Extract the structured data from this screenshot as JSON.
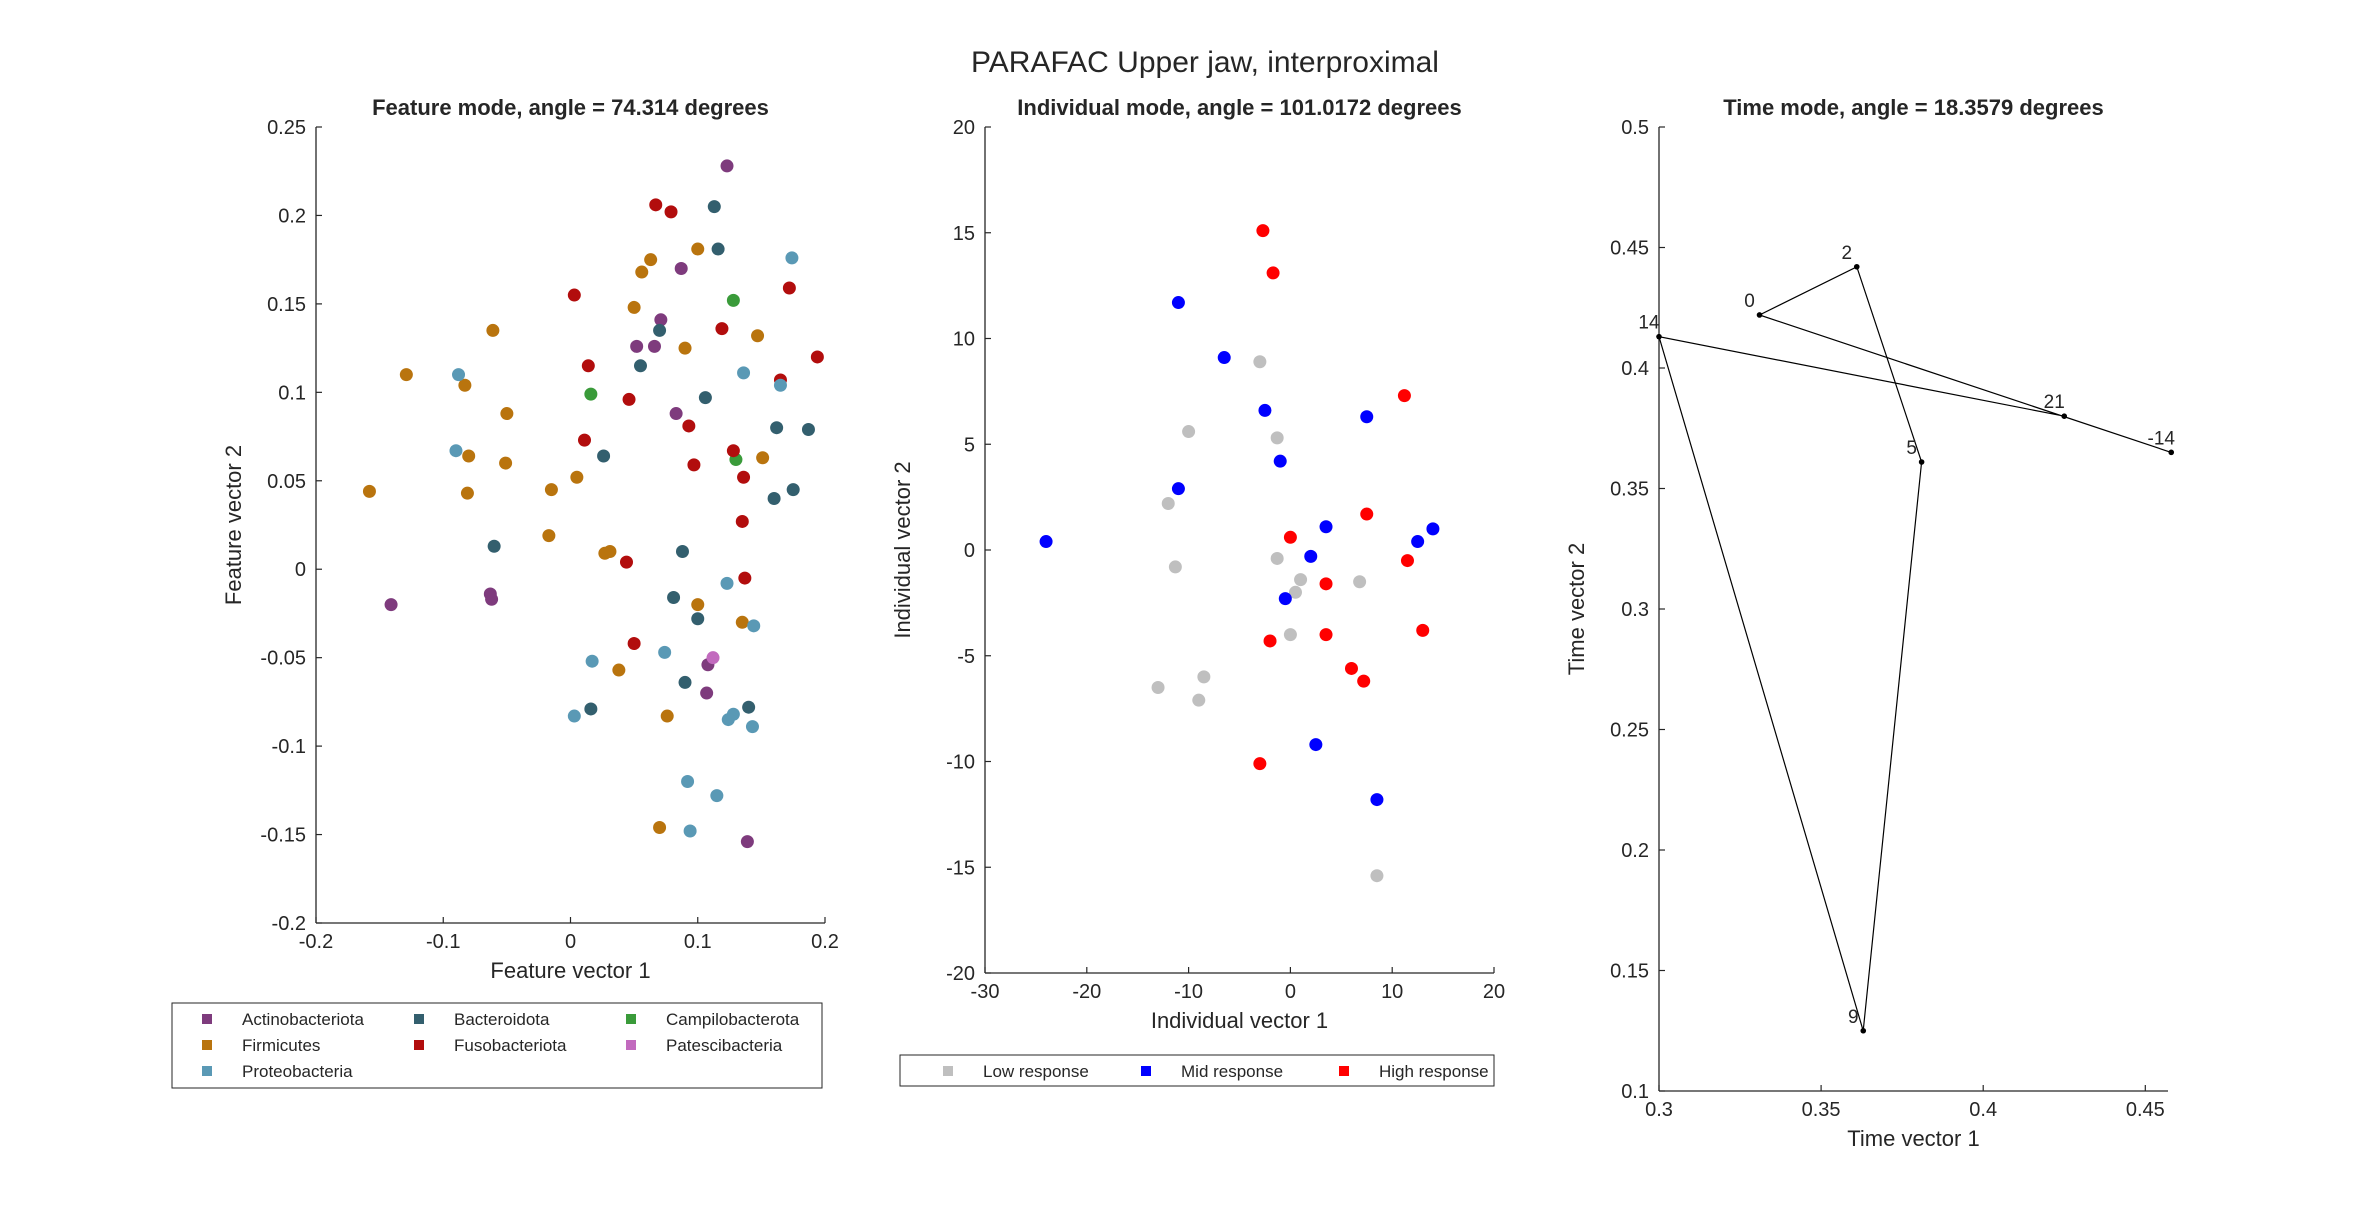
{
  "figure": {
    "suptitle": "PARAFAC Upper jaw, interproximal"
  },
  "chart_data": [
    {
      "type": "scatter",
      "title": "Feature mode, angle = 74.314 degrees",
      "xlabel": "Feature vector 1",
      "ylabel": "Feature vector 2",
      "xlim": [
        -0.2,
        0.2
      ],
      "ylim": [
        -0.2,
        0.25
      ],
      "xticks": [
        "-0.2",
        "-0.1",
        "0",
        "0.1",
        "0.2"
      ],
      "yticks": [
        "-0.2",
        "-0.15",
        "-0.1",
        "-0.05",
        "0",
        "0.05",
        "0.1",
        "0.15",
        "0.2",
        "0.25"
      ],
      "grid": false,
      "legend_position": "below",
      "series": [
        {
          "name": "Actinobacteriota",
          "color": "#7E3B7D",
          "points": [
            [
              0.123,
              0.228
            ],
            [
              0.052,
              0.126
            ],
            [
              0.066,
              0.126
            ],
            [
              0.071,
              0.141
            ],
            [
              0.083,
              0.088
            ],
            [
              0.087,
              0.17
            ],
            [
              -0.141,
              -0.02
            ],
            [
              -0.063,
              -0.014
            ],
            [
              -0.062,
              -0.017
            ],
            [
              0.107,
              -0.07
            ],
            [
              0.139,
              -0.154
            ],
            [
              0.108,
              -0.054
            ]
          ]
        },
        {
          "name": "Bacteroidota",
          "color": "#335F6E",
          "points": [
            [
              0.113,
              0.205
            ],
            [
              0.116,
              0.181
            ],
            [
              0.07,
              0.135
            ],
            [
              0.055,
              0.115
            ],
            [
              0.106,
              0.097
            ],
            [
              0.162,
              0.08
            ],
            [
              0.187,
              0.079
            ],
            [
              0.026,
              0.064
            ],
            [
              0.16,
              0.04
            ],
            [
              0.175,
              0.045
            ],
            [
              -0.06,
              0.013
            ],
            [
              0.088,
              0.01
            ],
            [
              0.081,
              -0.016
            ],
            [
              0.1,
              -0.028
            ],
            [
              0.09,
              -0.064
            ],
            [
              0.14,
              -0.078
            ],
            [
              0.016,
              -0.079
            ]
          ]
        },
        {
          "name": "Campilobacterota",
          "color": "#3A9B3A",
          "points": [
            [
              0.128,
              0.152
            ],
            [
              0.016,
              0.099
            ],
            [
              0.13,
              0.062
            ]
          ]
        },
        {
          "name": "Firmicutes",
          "color": "#B9740E",
          "points": [
            [
              0.063,
              0.175
            ],
            [
              0.1,
              0.181
            ],
            [
              0.056,
              0.168
            ],
            [
              0.05,
              0.148
            ],
            [
              0.09,
              0.125
            ],
            [
              0.147,
              0.132
            ],
            [
              -0.061,
              0.135
            ],
            [
              -0.129,
              0.11
            ],
            [
              -0.083,
              0.104
            ],
            [
              -0.05,
              0.088
            ],
            [
              -0.08,
              0.064
            ],
            [
              -0.051,
              0.06
            ],
            [
              -0.158,
              0.044
            ],
            [
              -0.081,
              0.043
            ],
            [
              -0.015,
              0.045
            ],
            [
              0.005,
              0.052
            ],
            [
              0.151,
              0.063
            ],
            [
              -0.017,
              0.019
            ],
            [
              0.027,
              0.009
            ],
            [
              0.031,
              0.01
            ],
            [
              0.1,
              -0.02
            ],
            [
              0.135,
              -0.03
            ],
            [
              0.038,
              -0.057
            ],
            [
              0.076,
              -0.083
            ],
            [
              0.07,
              -0.146
            ]
          ]
        },
        {
          "name": "Fusobacteriota",
          "color": "#B20D0D",
          "points": [
            [
              0.067,
              0.206
            ],
            [
              0.079,
              0.202
            ],
            [
              0.003,
              0.155
            ],
            [
              0.172,
              0.159
            ],
            [
              0.119,
              0.136
            ],
            [
              0.014,
              0.115
            ],
            [
              0.194,
              0.12
            ],
            [
              0.165,
              0.107
            ],
            [
              0.046,
              0.096
            ],
            [
              0.093,
              0.081
            ],
            [
              0.011,
              0.073
            ],
            [
              0.128,
              0.067
            ],
            [
              0.097,
              0.059
            ],
            [
              0.136,
              0.052
            ],
            [
              0.135,
              0.027
            ],
            [
              0.044,
              0.004
            ],
            [
              0.137,
              -0.005
            ],
            [
              0.05,
              -0.042
            ]
          ]
        },
        {
          "name": "Patescibacteria",
          "color": "#C26ABE",
          "points": [
            [
              0.112,
              -0.05
            ]
          ]
        },
        {
          "name": "Proteobacteria",
          "color": "#5A99B5",
          "points": [
            [
              0.174,
              0.176
            ],
            [
              0.136,
              0.111
            ],
            [
              0.165,
              0.104
            ],
            [
              -0.088,
              0.11
            ],
            [
              -0.09,
              0.067
            ],
            [
              0.123,
              -0.008
            ],
            [
              0.144,
              -0.032
            ],
            [
              0.074,
              -0.047
            ],
            [
              0.017,
              -0.052
            ],
            [
              0.003,
              -0.083
            ],
            [
              0.128,
              -0.082
            ],
            [
              0.124,
              -0.085
            ],
            [
              0.143,
              -0.089
            ],
            [
              0.092,
              -0.12
            ],
            [
              0.115,
              -0.128
            ],
            [
              0.094,
              -0.148
            ]
          ]
        }
      ]
    },
    {
      "type": "scatter",
      "title": "Individual mode, angle = 101.0172 degrees",
      "xlabel": "Individual vector 1",
      "ylabel": "Individual vector 2",
      "xlim": [
        -30,
        20
      ],
      "ylim": [
        -20,
        20
      ],
      "xticks": [
        "-30",
        "-20",
        "-10",
        "0",
        "10",
        "20"
      ],
      "yticks": [
        "-20",
        "-15",
        "-10",
        "-5",
        "0",
        "5",
        "10",
        "15",
        "20"
      ],
      "grid": false,
      "legend_position": "below",
      "series": [
        {
          "name": "Low response",
          "color": "#BFBFBF",
          "points": [
            [
              -3,
              8.9
            ],
            [
              -10,
              5.6
            ],
            [
              -1.3,
              5.3
            ],
            [
              -12,
              2.2
            ],
            [
              -11.3,
              -0.8
            ],
            [
              -1.3,
              -0.4
            ],
            [
              1,
              -1.4
            ],
            [
              6.8,
              -1.5
            ],
            [
              0.5,
              -2
            ],
            [
              0,
              -4
            ],
            [
              -8.5,
              -6
            ],
            [
              -13,
              -6.5
            ],
            [
              -9,
              -7.1
            ],
            [
              8.5,
              -15.4
            ]
          ]
        },
        {
          "name": "Mid response",
          "color": "#0000FF",
          "points": [
            [
              -11,
              11.7
            ],
            [
              -6.5,
              9.1
            ],
            [
              -2.5,
              6.6
            ],
            [
              7.5,
              6.3
            ],
            [
              -1,
              4.2
            ],
            [
              -11,
              2.9
            ],
            [
              3.5,
              1.1
            ],
            [
              14,
              1
            ],
            [
              12.5,
              0.4
            ],
            [
              -24,
              0.4
            ],
            [
              2,
              -0.3
            ],
            [
              -0.5,
              -2.3
            ],
            [
              2.5,
              -9.2
            ],
            [
              8.5,
              -11.8
            ]
          ]
        },
        {
          "name": "High response",
          "color": "#FF0000",
          "points": [
            [
              -2.7,
              15.1
            ],
            [
              -1.7,
              13.1
            ],
            [
              11.2,
              7.3
            ],
            [
              7.5,
              1.7
            ],
            [
              0,
              0.6
            ],
            [
              11.5,
              -0.5
            ],
            [
              3.5,
              -1.6
            ],
            [
              3.5,
              -4
            ],
            [
              -2,
              -4.3
            ],
            [
              13,
              -3.8
            ],
            [
              6,
              -5.6
            ],
            [
              7.2,
              -6.2
            ],
            [
              -3,
              -10.1
            ]
          ]
        }
      ]
    },
    {
      "type": "line",
      "title": "Time mode, angle = 18.3579 degrees",
      "xlabel": "Time vector 1",
      "ylabel": "Time vector 2",
      "xlim": [
        0.3,
        0.457
      ],
      "ylim": [
        0.1,
        0.5
      ],
      "xticks": [
        "0.3",
        "0.35",
        "0.4",
        "0.45"
      ],
      "yticks": [
        "0.1",
        "0.15",
        "0.2",
        "0.25",
        "0.3",
        "0.35",
        "0.4",
        "0.45",
        "0.5"
      ],
      "grid": false,
      "series": [
        {
          "color": "#000000",
          "points": [
            [
              0.458,
              0.365,
              "-14"
            ],
            [
              0.331,
              0.422,
              "0"
            ],
            [
              0.361,
              0.442,
              "2"
            ],
            [
              0.381,
              0.361,
              "5"
            ],
            [
              0.363,
              0.125,
              "9"
            ],
            [
              0.3,
              0.413,
              "14"
            ],
            [
              0.425,
              0.38,
              "21"
            ]
          ]
        }
      ]
    }
  ]
}
